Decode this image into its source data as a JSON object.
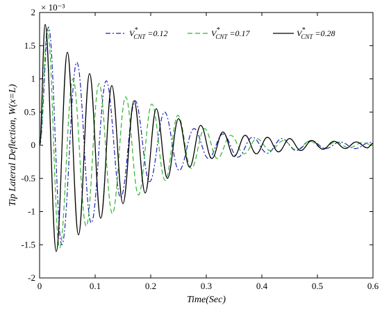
{
  "chart_data": {
    "type": "line",
    "title": "",
    "xlabel": "Time(Sec)",
    "ylabel": "Tip Lateral Deflection, W(x=L)",
    "y_multiplier": "× 10⁻³",
    "xlim": [
      0,
      0.6
    ],
    "ylim": [
      -2,
      2
    ],
    "x_ticks": [
      "0",
      "0.1",
      "0.2",
      "0.3",
      "0.4",
      "0.5",
      "0.6"
    ],
    "y_ticks": [
      "-2",
      "-1.5",
      "-1",
      "-0.5",
      "0",
      "0.5",
      "1",
      "1.5",
      "2"
    ],
    "grid": false,
    "legend_position": "top",
    "series": [
      {
        "legend_main": "V",
        "legend_sup": "*",
        "legend_sub": "CNT",
        "legend_value": " =0.12",
        "color": "#1f1fb4",
        "dash": "dash-dot",
        "points": [
          [
            0,
            0
          ],
          [
            0.016,
            1.78
          ],
          [
            0.04,
            -1.5
          ],
          [
            0.067,
            1.25
          ],
          [
            0.093,
            -1.17
          ],
          [
            0.12,
            0.97
          ],
          [
            0.146,
            -0.79
          ],
          [
            0.172,
            0.67
          ],
          [
            0.198,
            -0.55
          ],
          [
            0.225,
            0.5
          ],
          [
            0.251,
            -0.38
          ],
          [
            0.278,
            0.25
          ],
          [
            0.304,
            -0.2
          ],
          [
            0.33,
            0.17
          ],
          [
            0.357,
            -0.18
          ],
          [
            0.383,
            0.12
          ],
          [
            0.41,
            -0.12
          ],
          [
            0.436,
            0.1
          ],
          [
            0.462,
            -0.08
          ],
          [
            0.489,
            0.07
          ],
          [
            0.515,
            -0.05
          ],
          [
            0.541,
            0.05
          ],
          [
            0.568,
            -0.05
          ],
          [
            0.594,
            0.04
          ],
          [
            0.6,
            0.04
          ]
        ]
      },
      {
        "legend_main": "V",
        "legend_sup": "*",
        "legend_sub": "CNT",
        "legend_value": " =0.17",
        "color": "#2ab52a",
        "dash": "dashed",
        "points": [
          [
            0,
            0
          ],
          [
            0.014,
            1.75
          ],
          [
            0.036,
            -1.55
          ],
          [
            0.06,
            1.0
          ],
          [
            0.084,
            -1.22
          ],
          [
            0.107,
            0.93
          ],
          [
            0.131,
            -1.03
          ],
          [
            0.155,
            0.73
          ],
          [
            0.178,
            -0.75
          ],
          [
            0.202,
            0.62
          ],
          [
            0.226,
            -0.53
          ],
          [
            0.249,
            0.45
          ],
          [
            0.273,
            -0.35
          ],
          [
            0.297,
            0.25
          ],
          [
            0.32,
            -0.2
          ],
          [
            0.344,
            0.15
          ],
          [
            0.368,
            -0.13
          ],
          [
            0.391,
            0.1
          ],
          [
            0.415,
            -0.08
          ],
          [
            0.439,
            0.07
          ],
          [
            0.462,
            -0.07
          ],
          [
            0.486,
            0.06
          ],
          [
            0.51,
            -0.05
          ],
          [
            0.533,
            0.05
          ],
          [
            0.557,
            -0.04
          ],
          [
            0.581,
            0.04
          ],
          [
            0.6,
            0
          ]
        ]
      },
      {
        "legend_main": "V",
        "legend_sup": "*",
        "legend_sub": "CNT",
        "legend_value": " =0.28",
        "color": "#000000",
        "dash": "solid",
        "points": [
          [
            0,
            0
          ],
          [
            0.01,
            1.82
          ],
          [
            0.03,
            -1.6
          ],
          [
            0.05,
            1.4
          ],
          [
            0.07,
            -1.35
          ],
          [
            0.09,
            1.08
          ],
          [
            0.11,
            -1.1
          ],
          [
            0.13,
            0.9
          ],
          [
            0.15,
            -0.88
          ],
          [
            0.17,
            0.67
          ],
          [
            0.19,
            -0.72
          ],
          [
            0.21,
            0.55
          ],
          [
            0.23,
            -0.5
          ],
          [
            0.25,
            0.4
          ],
          [
            0.27,
            -0.33
          ],
          [
            0.29,
            0.3
          ],
          [
            0.31,
            -0.2
          ],
          [
            0.33,
            0.2
          ],
          [
            0.35,
            -0.17
          ],
          [
            0.37,
            0.15
          ],
          [
            0.39,
            -0.13
          ],
          [
            0.41,
            0.12
          ],
          [
            0.43,
            -0.1
          ],
          [
            0.45,
            0.1
          ],
          [
            0.47,
            -0.08
          ],
          [
            0.49,
            0.07
          ],
          [
            0.51,
            -0.06
          ],
          [
            0.53,
            0.06
          ],
          [
            0.55,
            -0.05
          ],
          [
            0.57,
            0.05
          ],
          [
            0.59,
            -0.04
          ],
          [
            0.6,
            0.03
          ]
        ]
      }
    ]
  }
}
